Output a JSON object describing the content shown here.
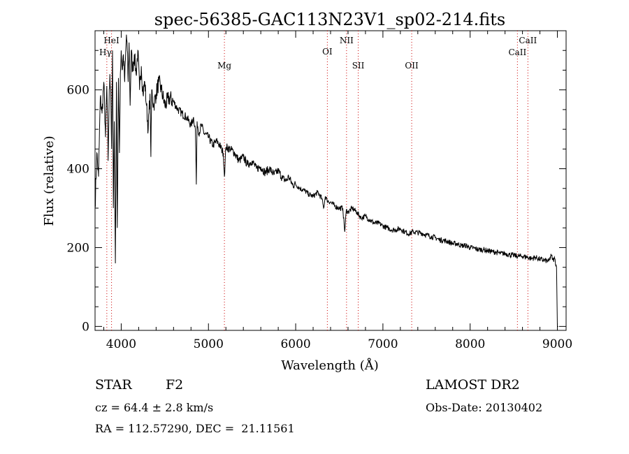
{
  "chart_data": {
    "type": "line",
    "title": "spec-56385-GAC113N23V1_sp02-214.fits",
    "xlabel": "Wavelength (Å)",
    "ylabel": "Flux (relative)",
    "xlim": [
      3700,
      9100
    ],
    "ylim": [
      -10,
      750
    ],
    "x_ticks": [
      4000,
      5000,
      6000,
      7000,
      8000,
      9000
    ],
    "y_ticks": [
      0,
      200,
      400,
      600
    ],
    "grid": false,
    "line_color": "#000000",
    "marker_color": "#cc0000",
    "series": [
      {
        "x": [
          3700,
          3720,
          3740,
          3760,
          3780,
          3800,
          3820,
          3835,
          3850,
          3860,
          3870,
          3880,
          3890,
          3900,
          3910,
          3920,
          3933,
          3945,
          3955,
          3968,
          3980,
          3990,
          4000,
          4010,
          4025,
          4040,
          4060,
          4070,
          4080,
          4090,
          4102,
          4115,
          4130,
          4150,
          4170,
          4190,
          4210,
          4230,
          4250,
          4270,
          4290,
          4310,
          4330,
          4340,
          4350,
          4370,
          4400,
          4430,
          4460,
          4500,
          4550,
          4600,
          4650,
          4700,
          4750,
          4800,
          4830,
          4850,
          4861,
          4870,
          4890,
          4920,
          4950,
          5000,
          5050,
          5100,
          5150,
          5170,
          5183,
          5200,
          5250,
          5300,
          5350,
          5400,
          5450,
          5500,
          5550,
          5600,
          5650,
          5700,
          5750,
          5800,
          5850,
          5893,
          5920,
          5960,
          6000,
          6050,
          6100,
          6150,
          6200,
          6250,
          6300,
          6320,
          6340,
          6360,
          6400,
          6450,
          6500,
          6540,
          6563,
          6580,
          6600,
          6650,
          6700,
          6750,
          6800,
          6850,
          6900,
          6950,
          7000,
          7050,
          7100,
          7150,
          7200,
          7250,
          7300,
          7350,
          7400,
          7450,
          7500,
          7550,
          7600,
          7650,
          7700,
          7750,
          7800,
          7850,
          7900,
          7950,
          8000,
          8050,
          8100,
          8150,
          8200,
          8250,
          8300,
          8350,
          8400,
          8450,
          8500,
          8550,
          8600,
          8650,
          8700,
          8750,
          8800,
          8850,
          8900,
          8930,
          8950,
          8970,
          8990,
          9000,
          9010
        ],
        "y": [
          300,
          440,
          380,
          580,
          540,
          620,
          480,
          610,
          420,
          560,
          640,
          600,
          450,
          700,
          300,
          520,
          160,
          620,
          250,
          630,
          440,
          640,
          700,
          650,
          690,
          620,
          740,
          700,
          620,
          720,
          560,
          700,
          650,
          690,
          640,
          700,
          600,
          660,
          590,
          620,
          560,
          500,
          590,
          430,
          600,
          560,
          590,
          620,
          600,
          560,
          580,
          570,
          550,
          540,
          530,
          510,
          530,
          500,
          360,
          520,
          490,
          510,
          490,
          480,
          460,
          470,
          450,
          440,
          380,
          455,
          450,
          440,
          420,
          430,
          410,
          420,
          400,
          405,
          390,
          400,
          385,
          395,
          375,
          370,
          380,
          360,
          360,
          350,
          345,
          335,
          330,
          340,
          325,
          300,
          330,
          320,
          315,
          305,
          300,
          300,
          240,
          295,
          290,
          300,
          290,
          275,
          280,
          270,
          262,
          262,
          255,
          250,
          245,
          245,
          248,
          240,
          235,
          240,
          238,
          236,
          232,
          228,
          225,
          220,
          218,
          215,
          210,
          210,
          205,
          205,
          200,
          198,
          195,
          195,
          192,
          190,
          188,
          185,
          185,
          182,
          180,
          178,
          178,
          176,
          172,
          175,
          170,
          168,
          165,
          180,
          168,
          172,
          150,
          0,
          0
        ]
      }
    ],
    "line_markers": [
      {
        "label": "Hγ",
        "x": 3835
      },
      {
        "label": "HeI",
        "x": 3889
      },
      {
        "label": "Mg",
        "x": 5183
      },
      {
        "label": "OI",
        "x": 6363
      },
      {
        "label": "NII",
        "x": 6583
      },
      {
        "label": "SII",
        "x": 6717
      },
      {
        "label": "OII",
        "x": 7330
      },
      {
        "label": "CaII",
        "x": 8542
      },
      {
        "label": "CaII",
        "x": 8662
      }
    ]
  },
  "info": {
    "object_type": "STAR",
    "subclass": "F2",
    "survey": "LAMOST DR2",
    "redshift": "cz = 64.4 ± 2.8 km/s",
    "obs_date": "Obs-Date: 20130402",
    "coords": "RA = 112.57290, DEC =  21.11561"
  }
}
